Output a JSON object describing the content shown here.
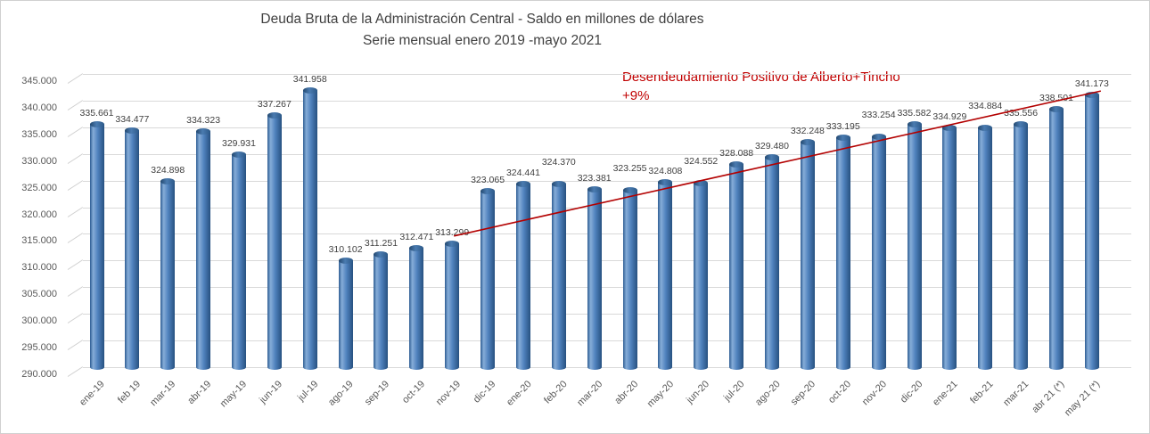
{
  "frame": {
    "border_color": "#d0d0d0",
    "background": "#ffffff"
  },
  "title": {
    "line1": "Deuda Bruta de la Administración Central - Saldo en millones de dólares",
    "line2": "Serie mensual enero 2019 -mayo 2021",
    "color": "#404040"
  },
  "annotation": {
    "line1": "Desendeudamiento Positivo de Alberto+Tincho",
    "line2": "+9%",
    "color": "#c00000"
  },
  "chart_data": {
    "type": "bar",
    "subtype": "3d-cylinder",
    "title": "Deuda Bruta de la Administración Central - Saldo en millones de dólares",
    "subtitle": "Serie mensual enero 2019 -mayo 2021",
    "xlabel": "",
    "ylabel": "",
    "grid": true,
    "legend": false,
    "bar_color": "#4f81bd",
    "axis_text_color": "#595959",
    "data_label_color": "#3f3f3f",
    "ylim": [
      290000,
      345000
    ],
    "ytick_step": 5000,
    "categories": [
      "ene-19",
      "feb 19",
      "mar-19",
      "abr-19",
      "may-19",
      "jun-19",
      "jul-19",
      "ago-19",
      "sep-19",
      "oct-19",
      "nov-19",
      "dic-19",
      "ene-20",
      "feb-20",
      "mar-20",
      "abr-20",
      "may-20",
      "jun-20",
      "jul-20",
      "ago-20",
      "sep-20",
      "oct-20",
      "nov-20",
      "dic-20",
      "ene-21",
      "feb-21",
      "mar-21",
      "abr 21 (*)",
      "may 21 (*)"
    ],
    "values": [
      335661,
      334477,
      324898,
      334323,
      329931,
      337267,
      341958,
      310102,
      311251,
      312471,
      313299,
      323065,
      324441,
      324370,
      323381,
      323255,
      324808,
      324552,
      328088,
      329480,
      332248,
      333195,
      333254,
      335582,
      334929,
      334884,
      335556,
      338501,
      341173
    ],
    "trend_line": {
      "start_category_index": 10,
      "start_value": 314600,
      "end_category_index": 28,
      "end_value": 341800,
      "color": "#b30000"
    }
  }
}
